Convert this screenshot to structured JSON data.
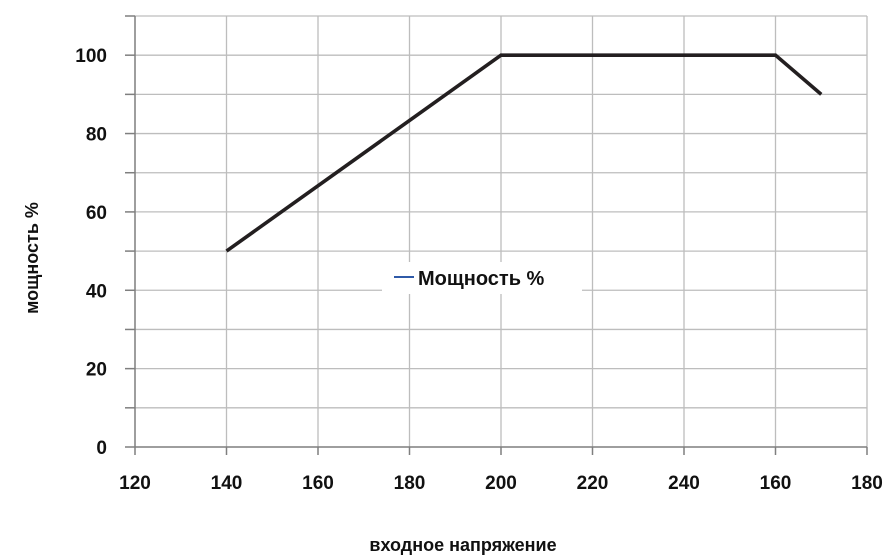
{
  "chart_data": {
    "type": "line",
    "x_tick_labels": [
      "120",
      "140",
      "160",
      "180",
      "200",
      "220",
      "240",
      "160",
      "180"
    ],
    "y_tick_labels": [
      "0",
      "20",
      "40",
      "60",
      "80",
      "100"
    ],
    "ylim": [
      0,
      110
    ],
    "xlabel": "входное напряжение",
    "ylabel": "мощность %",
    "grid": true,
    "legend_position": "center",
    "series": [
      {
        "name": "Мощность %",
        "color": "#231f20",
        "points": [
          {
            "x_label": "140",
            "y": 50
          },
          {
            "x_label": "200",
            "y": 100
          },
          {
            "x_label": "160",
            "y": 100
          },
          {
            "x_label": "170",
            "y": 90
          }
        ]
      }
    ]
  },
  "colors": {
    "grid": "#bdbdbd",
    "axis": "#7f7f7f",
    "legend_marker": "#2f5aa8"
  }
}
